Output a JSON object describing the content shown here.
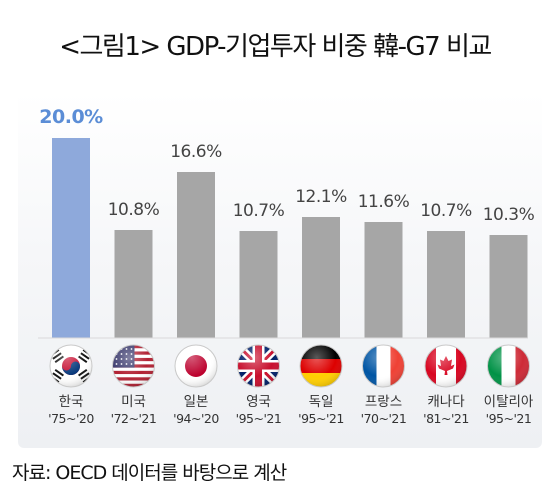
{
  "title": "<그림1> GDP-기업투자 비중 韓-G7 비교",
  "source": "자료: OECD 데이터를 바탕으로 계산",
  "chart_data": {
    "type": "bar",
    "categories": [
      "한국",
      "미국",
      "일본",
      "영국",
      "독일",
      "프랑스",
      "캐나다",
      "이탈리아"
    ],
    "periods": [
      "'75~'20",
      "'72~'21",
      "'94~'20",
      "'95~'21",
      "'95~'21",
      "'70~'21",
      "'81~'21",
      "'95~'21"
    ],
    "values": [
      20.0,
      10.8,
      16.6,
      10.7,
      12.1,
      11.6,
      10.7,
      10.3
    ],
    "value_labels": [
      "20.0%",
      "10.8%",
      "16.6%",
      "10.7%",
      "12.1%",
      "11.6%",
      "10.7%",
      "10.3%"
    ],
    "flags": [
      "korea-flag",
      "usa-flag",
      "japan-flag",
      "uk-flag",
      "germany-flag",
      "france-flag",
      "canada-flag",
      "italy-flag"
    ],
    "ylim": [
      0,
      20
    ],
    "highlight_color": "#8EA9DB",
    "bar_color": "#A6A6A6",
    "highlight_label_color": "#5B8DD6",
    "grid": false
  }
}
